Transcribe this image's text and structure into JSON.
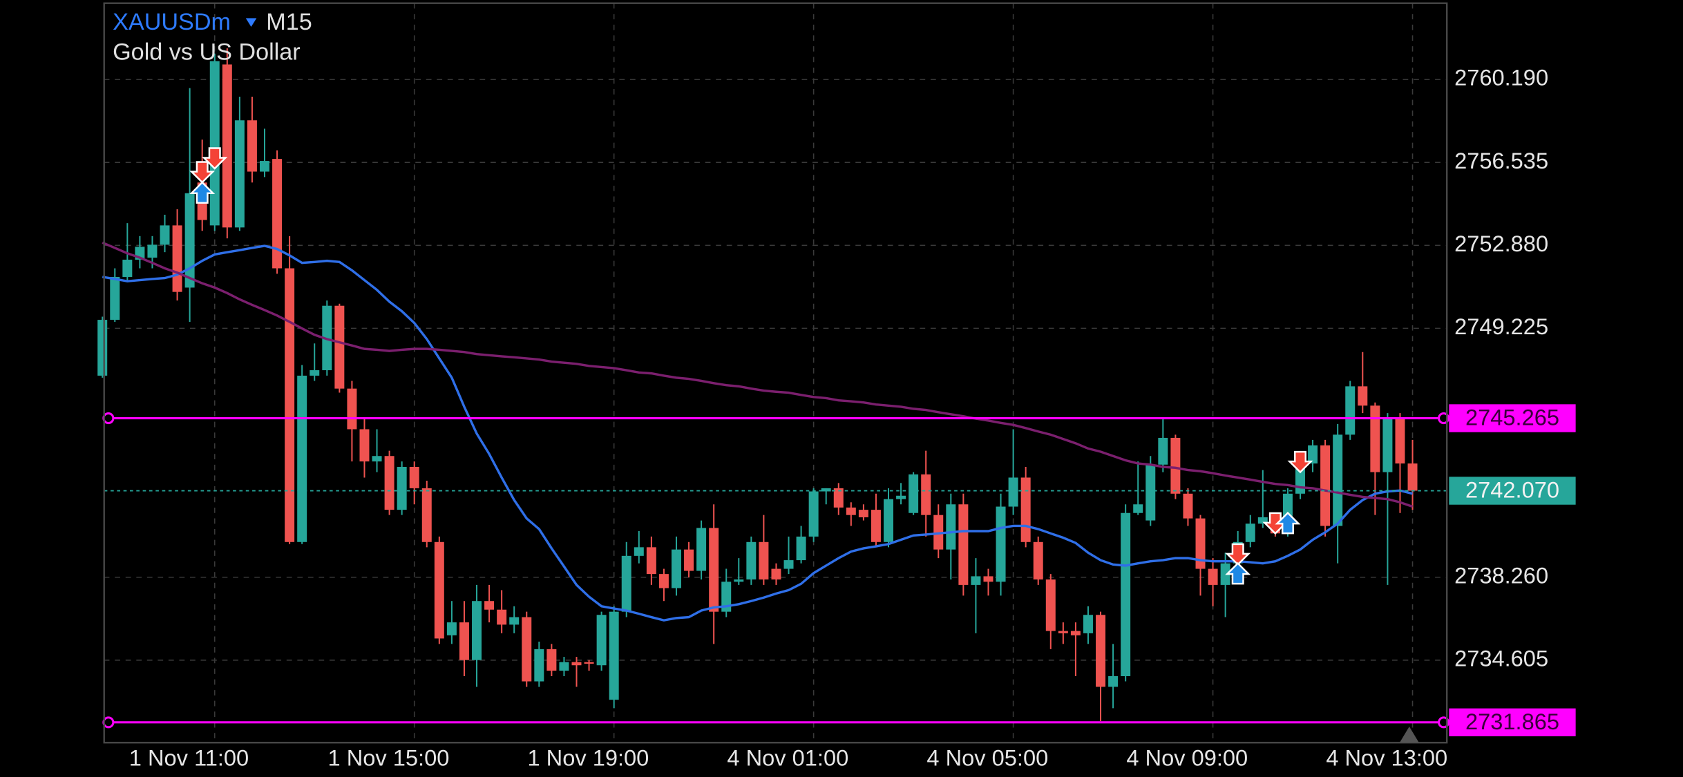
{
  "chart_data": {
    "type": "candlestick",
    "symbol": "XAUUSDm",
    "timeframe": "M15",
    "description": "Gold vs US Dollar",
    "categories": [
      null,
      null,
      null,
      null,
      null,
      null,
      null,
      null,
      null,
      "1 Nov 11:00",
      null,
      null,
      null,
      null,
      null,
      null,
      null,
      null,
      null,
      null,
      null,
      null,
      null,
      null,
      null,
      "1 Nov 15:00",
      null,
      null,
      null,
      null,
      null,
      null,
      null,
      null,
      null,
      null,
      null,
      null,
      null,
      null,
      null,
      "1 Nov 19:00",
      null,
      null,
      null,
      null,
      null,
      null,
      null,
      null,
      null,
      null,
      null,
      null,
      null,
      null,
      null,
      "4 Nov 01:00",
      null,
      null,
      null,
      null,
      null,
      null,
      null,
      null,
      null,
      null,
      null,
      null,
      null,
      null,
      null,
      "4 Nov 05:00",
      null,
      null,
      null,
      null,
      null,
      null,
      null,
      null,
      null,
      null,
      null,
      null,
      null,
      null,
      null,
      "4 Nov 09:00",
      null,
      null,
      null,
      null,
      null,
      null,
      null,
      null,
      null,
      null,
      null,
      null,
      null,
      null,
      null,
      "4 Nov 13:00"
    ],
    "open": [
      2747.14,
      2749.6,
      2751.49,
      2752.25,
      2752.34,
      2752.91,
      2753.76,
      2751.02,
      2755.65,
      2753.76,
      2760.85,
      2753.67,
      2758.39,
      2756.13,
      2756.69,
      2751.87,
      2739.81,
      2747.14,
      2747.38,
      2750.22,
      2746.57,
      2744.78,
      2743.36,
      2743.6,
      2741.23,
      2743.12,
      2742.18,
      2739.81,
      2735.7,
      2736.27,
      2734.61,
      2737.21,
      2736.83,
      2736.17,
      2736.5,
      2733.67,
      2735.09,
      2734.14,
      2734.52,
      2734.52,
      2734.38,
      2732.86,
      2736.74,
      2739.2,
      2739.58,
      2738.4,
      2737.78,
      2739.48,
      2738.54,
      2740.43,
      2736.74,
      2738.06,
      2738.16,
      2739.81,
      2738.63,
      2738.63,
      2739.01,
      2740.05,
      2742.04,
      2742.18,
      2741.33,
      2741.23,
      2741.23,
      2739.81,
      2741.7,
      2741.09,
      2742.79,
      2741.0,
      2739.48,
      2741.47,
      2737.92,
      2738.3,
      2738.06,
      2741.37,
      2742.65,
      2739.81,
      2738.16,
      2735.89,
      2735.89,
      2735.79,
      2736.6,
      2733.43,
      2733.9,
      2741.09,
      2740.76,
      2743.22,
      2744.4,
      2741.94,
      2740.85,
      2738.63,
      2737.92,
      2738.87,
      2739.81,
      2740.62,
      2740.9,
      2740.19,
      2741.94,
      2743.27,
      2744.07,
      2740.52,
      2744.54,
      2746.67,
      2745.82,
      2742.89,
      2745.25,
      2743.27
    ],
    "high": [
      2749.74,
      2751.87,
      2753.86,
      2753.29,
      2753.29,
      2754.23,
      2754.47,
      2759.81,
      2757.54,
      2761.33,
      2761.56,
      2759.43,
      2759.43,
      2758.02,
      2757.07,
      2753.29,
      2747.61,
      2748.56,
      2750.45,
      2750.31,
      2746.91,
      2745.25,
      2744.78,
      2743.83,
      2743.36,
      2743.36,
      2742.51,
      2740.05,
      2737.21,
      2737.21,
      2737.92,
      2737.92,
      2737.69,
      2736.98,
      2736.74,
      2735.42,
      2735.32,
      2734.75,
      2734.75,
      2734.61,
      2736.74,
      2736.98,
      2739.81,
      2740.29,
      2740.05,
      2738.63,
      2740.05,
      2739.81,
      2740.76,
      2741.47,
      2738.63,
      2739.1,
      2740.05,
      2741.0,
      2738.87,
      2740.05,
      2740.52,
      2742.18,
      2742.18,
      2742.41,
      2741.56,
      2741.47,
      2741.94,
      2742.18,
      2742.41,
      2742.89,
      2743.83,
      2741.47,
      2741.94,
      2741.94,
      2739.1,
      2738.63,
      2741.94,
      2744.78,
      2743.12,
      2740.05,
      2738.4,
      2736.27,
      2736.27,
      2736.98,
      2736.74,
      2735.32,
      2741.47,
      2743.36,
      2743.6,
      2745.25,
      2744.54,
      2742.18,
      2741.0,
      2739.1,
      2739.34,
      2740.29,
      2741.0,
      2742.98,
      2741.09,
      2742.18,
      2743.45,
      2744.31,
      2744.31,
      2745.01,
      2746.91,
      2748.18,
      2745.96,
      2745.49,
      2745.49,
      2744.31
    ],
    "low": [
      2747.05,
      2749.51,
      2751.3,
      2751.87,
      2751.87,
      2752.58,
      2750.45,
      2749.51,
      2753.52,
      2753.52,
      2753.19,
      2753.52,
      2755.65,
      2755.89,
      2751.63,
      2739.72,
      2739.72,
      2746.91,
      2747.14,
      2746.39,
      2743.36,
      2742.65,
      2742.89,
      2741.0,
      2741.0,
      2741.47,
      2739.58,
      2735.32,
      2735.32,
      2733.9,
      2733.43,
      2736.27,
      2735.79,
      2735.79,
      2733.43,
      2733.43,
      2733.9,
      2733.9,
      2733.43,
      2734.14,
      2734.14,
      2732.49,
      2736.5,
      2738.87,
      2737.92,
      2737.21,
      2737.45,
      2738.25,
      2738.16,
      2735.32,
      2736.5,
      2737.92,
      2737.92,
      2737.92,
      2737.92,
      2738.4,
      2738.87,
      2739.81,
      2741.47,
      2741.0,
      2740.52,
      2740.76,
      2739.58,
      2739.58,
      2741.47,
      2741.0,
      2740.05,
      2739.1,
      2738.16,
      2737.45,
      2735.79,
      2737.45,
      2737.45,
      2741.0,
      2739.58,
      2737.92,
      2735.09,
      2735.32,
      2733.9,
      2735.32,
      2731.92,
      2732.49,
      2733.67,
      2741.0,
      2740.52,
      2742.89,
      2741.7,
      2740.52,
      2737.45,
      2736.98,
      2736.5,
      2738.63,
      2739.58,
      2740.43,
      2740.05,
      2740.05,
      2741.7,
      2742.89,
      2740.05,
      2738.87,
      2744.31,
      2745.49,
      2741.0,
      2737.92,
      2741.09,
      2741.23
    ],
    "close": [
      2749.6,
      2751.49,
      2752.25,
      2752.82,
      2752.91,
      2753.76,
      2750.83,
      2755.18,
      2754.0,
      2761.0,
      2753.67,
      2758.39,
      2756.13,
      2756.6,
      2751.87,
      2739.81,
      2747.14,
      2747.38,
      2750.22,
      2746.57,
      2744.78,
      2743.36,
      2743.6,
      2741.23,
      2743.12,
      2742.18,
      2739.81,
      2735.56,
      2736.27,
      2734.61,
      2737.21,
      2736.83,
      2736.17,
      2736.5,
      2733.67,
      2735.09,
      2734.14,
      2734.52,
      2734.38,
      2734.47,
      2736.6,
      2736.74,
      2739.2,
      2739.58,
      2738.4,
      2737.78,
      2739.48,
      2738.54,
      2740.43,
      2736.74,
      2738.06,
      2738.16,
      2739.81,
      2738.16,
      2738.16,
      2739.01,
      2740.05,
      2742.04,
      2742.18,
      2741.33,
      2741.0,
      2740.9,
      2739.81,
      2741.7,
      2741.85,
      2742.79,
      2741.0,
      2739.48,
      2741.47,
      2737.92,
      2738.3,
      2738.06,
      2741.37,
      2742.65,
      2739.81,
      2738.16,
      2735.89,
      2735.79,
      2735.7,
      2736.6,
      2733.43,
      2733.9,
      2741.09,
      2741.47,
      2743.22,
      2744.4,
      2741.94,
      2740.85,
      2738.63,
      2737.92,
      2738.87,
      2739.81,
      2740.62,
      2740.9,
      2740.19,
      2741.94,
      2743.27,
      2744.07,
      2740.52,
      2744.54,
      2746.67,
      2745.82,
      2742.89,
      2745.25,
      2743.27,
      2742.07
    ],
    "up_color": "#26a69a",
    "down_color": "#ef5350",
    "lines": [
      {
        "color": "#2f6fe8",
        "values": [
          2751.49,
          2751.4,
          2751.3,
          2751.35,
          2751.4,
          2751.44,
          2751.59,
          2751.87,
          2752.2,
          2752.48,
          2752.58,
          2752.67,
          2752.77,
          2752.86,
          2752.72,
          2752.44,
          2752.11,
          2752.15,
          2752.2,
          2752.15,
          2751.78,
          2751.35,
          2750.92,
          2750.4,
          2749.98,
          2749.46,
          2748.75,
          2747.9,
          2747.05,
          2745.77,
          2744.59,
          2743.69,
          2742.65,
          2741.66,
          2740.85,
          2740.38,
          2739.53,
          2738.73,
          2737.92,
          2737.4,
          2736.98,
          2736.88,
          2736.79,
          2736.65,
          2736.5,
          2736.36,
          2736.46,
          2736.5,
          2736.79,
          2736.93,
          2736.98,
          2737.07,
          2737.21,
          2737.36,
          2737.54,
          2737.69,
          2737.97,
          2738.44,
          2738.77,
          2739.1,
          2739.39,
          2739.53,
          2739.62,
          2739.72,
          2739.91,
          2740.1,
          2740.14,
          2740.19,
          2740.24,
          2740.29,
          2740.29,
          2740.29,
          2740.43,
          2740.52,
          2740.52,
          2740.38,
          2740.19,
          2740.0,
          2739.77,
          2739.34,
          2739.01,
          2738.82,
          2738.77,
          2738.87,
          2738.96,
          2739.01,
          2739.1,
          2739.1,
          2739.01,
          2738.96,
          2738.96,
          2738.96,
          2738.92,
          2738.87,
          2738.96,
          2739.2,
          2739.48,
          2739.91,
          2740.24,
          2740.62,
          2741.23,
          2741.66,
          2741.94,
          2742.04,
          2742.08,
          2741.94
        ]
      },
      {
        "color": "#7b1f6e",
        "values": [
          2753.0,
          2752.77,
          2752.53,
          2752.34,
          2752.11,
          2751.87,
          2751.68,
          2751.44,
          2751.21,
          2751.02,
          2750.78,
          2750.5,
          2750.26,
          2750.03,
          2749.79,
          2749.51,
          2749.22,
          2748.94,
          2748.75,
          2748.61,
          2748.47,
          2748.32,
          2748.28,
          2748.23,
          2748.28,
          2748.32,
          2748.32,
          2748.28,
          2748.23,
          2748.18,
          2748.09,
          2748.04,
          2747.99,
          2747.95,
          2747.9,
          2747.85,
          2747.76,
          2747.71,
          2747.66,
          2747.57,
          2747.52,
          2747.47,
          2747.38,
          2747.28,
          2747.24,
          2747.14,
          2747.05,
          2747.0,
          2746.91,
          2746.81,
          2746.72,
          2746.67,
          2746.57,
          2746.48,
          2746.43,
          2746.39,
          2746.29,
          2746.2,
          2746.15,
          2746.05,
          2746.01,
          2745.96,
          2745.87,
          2745.82,
          2745.77,
          2745.68,
          2745.63,
          2745.53,
          2745.44,
          2745.35,
          2745.25,
          2745.16,
          2745.06,
          2744.97,
          2744.83,
          2744.68,
          2744.54,
          2744.35,
          2744.16,
          2743.93,
          2743.79,
          2743.6,
          2743.41,
          2743.27,
          2743.22,
          2743.12,
          2743.08,
          2742.98,
          2742.93,
          2742.84,
          2742.74,
          2742.65,
          2742.56,
          2742.46,
          2742.37,
          2742.32,
          2742.22,
          2742.18,
          2742.08,
          2741.99,
          2741.89,
          2741.8,
          2741.75,
          2741.7,
          2741.56,
          2741.37
        ]
      }
    ],
    "hlines": [
      {
        "value": 2745.265,
        "color": "#ff00ff"
      },
      {
        "value": 2731.865,
        "color": "#ff00ff"
      }
    ],
    "price_line": {
      "value": 2742.07,
      "label": "2742.070",
      "color": "#26a69a"
    },
    "trades": [
      {
        "index": 8,
        "price": 2756.13,
        "direction": "down"
      },
      {
        "index": 9,
        "price": 2756.74,
        "direction": "down"
      },
      {
        "index": 8,
        "price": 2755.18,
        "direction": "up"
      },
      {
        "index": 91,
        "price": 2739.29,
        "direction": "down"
      },
      {
        "index": 91,
        "price": 2738.4,
        "direction": "up"
      },
      {
        "index": 94,
        "price": 2740.66,
        "direction": "down"
      },
      {
        "index": 95,
        "price": 2740.62,
        "direction": "up"
      },
      {
        "index": 96,
        "price": 2743.36,
        "direction": "down"
      }
    ],
    "trade_colors": {
      "up": "#1e88e5",
      "down": "#f44336"
    },
    "ylim": [
      2730.97,
      2763.55
    ],
    "yticks": [
      {
        "value": 2760.19,
        "label": "2760.190"
      },
      2756.535,
      {
        "value": 2752.88,
        "label": "2752.880"
      },
      2749.225,
      {
        "value": 2738.26,
        "label": "2738.260"
      },
      2734.605
    ],
    "grid": true
  }
}
